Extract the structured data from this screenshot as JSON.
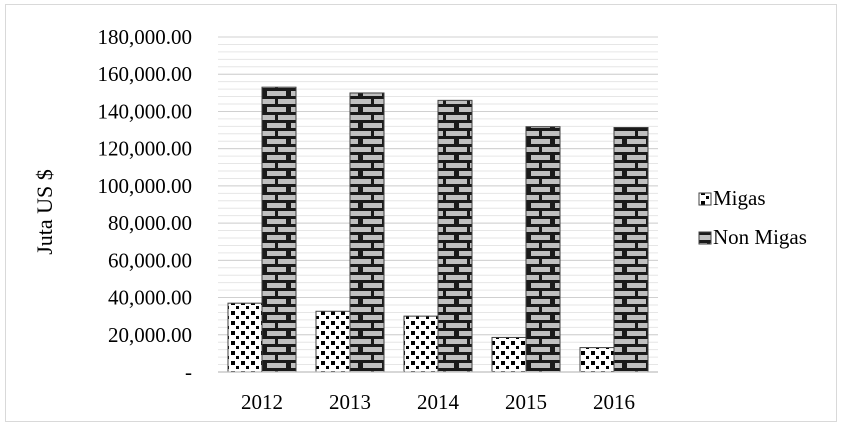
{
  "chart_data": {
    "type": "bar",
    "categories": [
      "2012",
      "2013",
      "2014",
      "2015",
      "2016"
    ],
    "series": [
      {
        "name": "Migas",
        "values": [
          36980,
          32630,
          30020,
          18570,
          13110
        ],
        "pattern": "dots",
        "color": "#000000"
      },
      {
        "name": "Non Migas",
        "values": [
          153040,
          149920,
          145960,
          131790,
          131370
        ],
        "pattern": "brick",
        "color": "#bfbfbf"
      }
    ],
    "ylabel": "Juta US $",
    "xlabel": "",
    "ylim": [
      0,
      180000
    ],
    "yticks": [
      {
        "value": 0,
        "label": "-"
      },
      {
        "value": 20000,
        "label": "20,000.00"
      },
      {
        "value": 40000,
        "label": "40,000.00"
      },
      {
        "value": 60000,
        "label": "60,000.00"
      },
      {
        "value": 80000,
        "label": "80,000.00"
      },
      {
        "value": 100000,
        "label": "100,000.00"
      },
      {
        "value": 120000,
        "label": "120,000.00"
      },
      {
        "value": 140000,
        "label": "140,000.00"
      },
      {
        "value": 160000,
        "label": "160,000.00"
      },
      {
        "value": 180000,
        "label": "180,000.00"
      }
    ],
    "grid": true,
    "legend_position": "right"
  }
}
